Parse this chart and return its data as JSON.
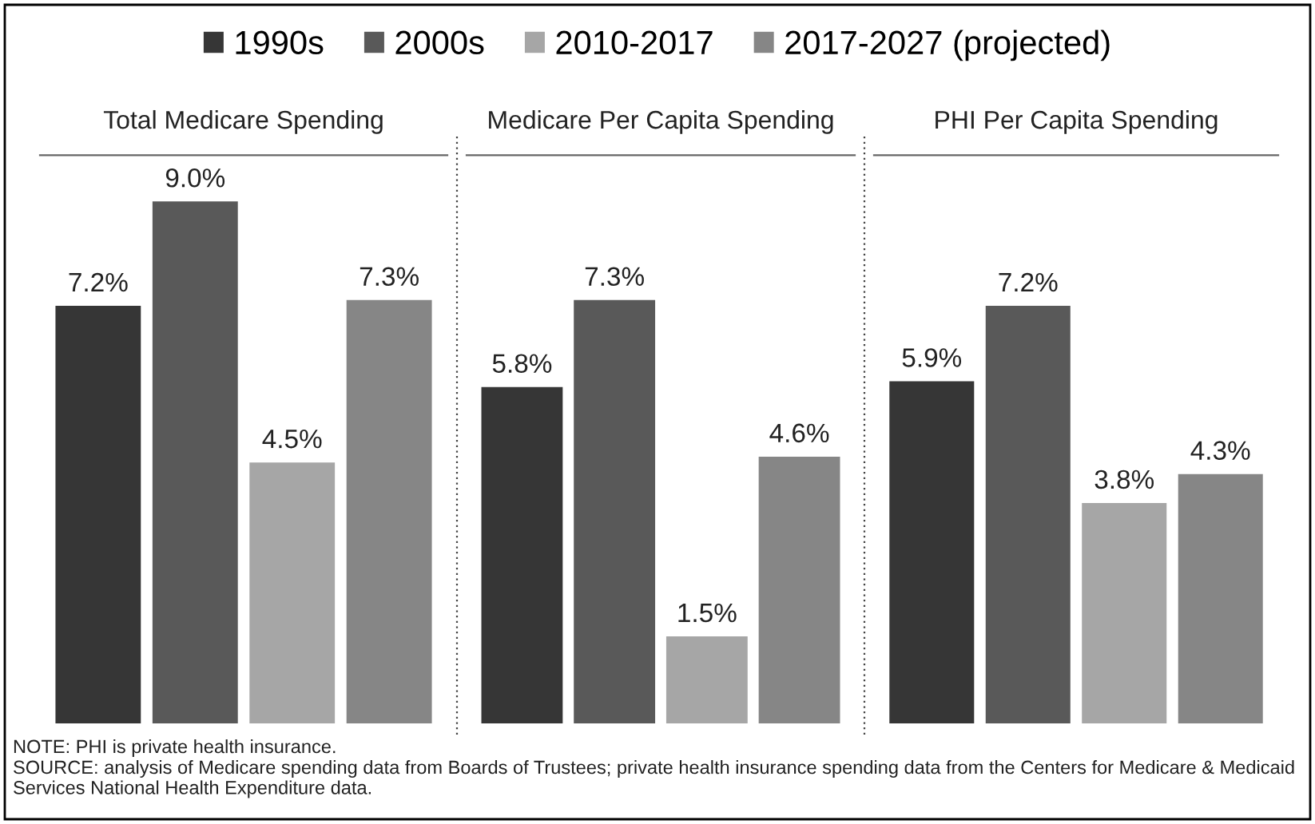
{
  "chart_data": [
    {
      "type": "bar",
      "title": "Total Medicare Spending",
      "categories": [
        null
      ],
      "legend": "top",
      "series": [
        {
          "name": "1990s",
          "color": "#363636",
          "values": [
            7.2
          ],
          "value_labels": [
            "7.2%"
          ]
        },
        {
          "name": "2000s",
          "color": "#595959",
          "values": [
            9.0
          ],
          "value_labels": [
            "9.0%"
          ]
        },
        {
          "name": "2010-2017",
          "color": "#a6a6a6",
          "values": [
            4.5
          ],
          "value_labels": [
            "4.5%"
          ]
        },
        {
          "name": "2017-2027 (projected)",
          "color": "#868686",
          "values": [
            7.3
          ],
          "value_labels": [
            "7.3%"
          ]
        }
      ],
      "annotations": [
        "NOTE: PHI is private health insurance.",
        "SOURCE: analysis of Medicare spending data from Boards of Trustees; private health insurance spending data from the Centers for Medicare & Medicaid Services National Health Expenditure data."
      ]
    },
    {
      "type": "bar",
      "title": "Medicare Per Capita Spending",
      "categories": [
        null
      ],
      "series": [
        {
          "color": "#363636",
          "values": [
            5.8
          ],
          "value_labels": [
            "5.8%"
          ]
        },
        {
          "color": "#595959",
          "values": [
            7.3
          ],
          "value_labels": [
            "7.3%"
          ]
        },
        {
          "color": "#a6a6a6",
          "values": [
            1.5
          ],
          "value_labels": [
            "1.5%"
          ]
        },
        {
          "color": "#868686",
          "values": [
            4.6
          ],
          "value_labels": [
            "4.6%"
          ]
        }
      ]
    },
    {
      "type": "bar",
      "title": "PHI Per Capita Spending",
      "categories": [
        null
      ],
      "series": [
        {
          "color": "#363636",
          "values": [
            5.9
          ],
          "value_labels": [
            "5.9%"
          ]
        },
        {
          "color": "#595959",
          "values": [
            7.2
          ],
          "value_labels": [
            "7.2%"
          ]
        },
        {
          "color": "#a6a6a6",
          "values": [
            3.8
          ],
          "value_labels": [
            "3.8%"
          ]
        },
        {
          "color": "#868686",
          "values": [
            4.3
          ],
          "value_labels": [
            "4.3%"
          ]
        }
      ]
    }
  ]
}
